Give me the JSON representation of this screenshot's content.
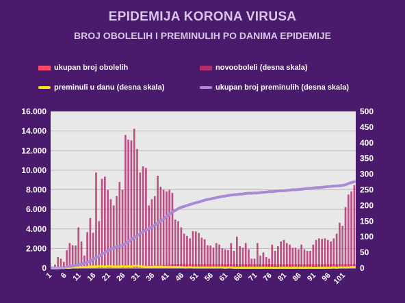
{
  "chart_data": {
    "type": "bar",
    "title": "EPIDEMIJA KORONA VIRUSA",
    "subtitle": "BROJ OBOLELIH I PREMINULIH PO DANIMA EPIDEMIJE",
    "xlabel": "",
    "ylabel": "",
    "ylim": [
      0,
      16000
    ],
    "y2lim": [
      0,
      500
    ],
    "grid": true,
    "legend_position": "top",
    "background": "#4a1a6c",
    "plot_background": "#e8e8e8",
    "y_ticks": [
      "0",
      "2.000",
      "4.000",
      "6.000",
      "8.000",
      "10.000",
      "12.000",
      "14.000",
      "16.000"
    ],
    "y2_ticks": [
      "0",
      "50",
      "100",
      "150",
      "200",
      "250",
      "300",
      "350",
      "400",
      "450",
      "500"
    ],
    "x_ticks": [
      "1",
      "6",
      "11",
      "16",
      "21",
      "26",
      "31",
      "36",
      "41",
      "46",
      "51",
      "56",
      "61",
      "66",
      "71",
      "76",
      "81",
      "86",
      "91",
      "96",
      "101"
    ],
    "x": [
      1,
      2,
      3,
      4,
      5,
      6,
      7,
      8,
      9,
      10,
      11,
      12,
      13,
      14,
      15,
      16,
      17,
      18,
      19,
      20,
      21,
      22,
      23,
      24,
      25,
      26,
      27,
      28,
      29,
      30,
      31,
      32,
      33,
      34,
      35,
      36,
      37,
      38,
      39,
      40,
      41,
      42,
      43,
      44,
      45,
      46,
      47,
      48,
      49,
      50,
      51,
      52,
      53,
      54,
      55,
      56,
      57,
      58,
      59,
      60,
      61,
      62,
      63,
      64,
      65,
      66,
      67,
      68,
      69,
      70,
      71,
      72,
      73,
      74,
      75,
      76,
      77,
      78,
      79,
      80,
      81,
      82,
      83,
      84,
      85,
      86,
      87,
      88,
      89,
      90,
      91,
      92,
      93,
      94,
      95,
      96,
      97,
      98,
      99,
      100,
      101,
      102,
      103,
      104
    ],
    "series": [
      {
        "name": "ukupan broj obolelih",
        "axis": "left",
        "type": "bar",
        "color": "#ff4a68",
        "values": [
          1,
          1,
          1,
          2,
          2,
          3,
          5,
          8,
          11,
          17,
          23,
          27,
          33,
          39,
          45,
          55,
          60,
          72,
          82,
          95,
          110,
          124,
          138,
          151,
          165,
          180,
          195,
          210,
          222,
          235,
          245,
          257,
          263,
          272,
          285,
          305,
          320,
          330,
          348,
          362,
          378,
          392,
          400,
          400,
          400,
          400,
          400,
          400,
          400,
          400,
          400,
          400,
          400,
          400,
          400,
          400,
          400,
          400,
          400,
          400,
          400,
          400,
          400,
          400,
          400,
          400,
          400,
          400,
          400,
          400,
          400,
          400,
          400,
          400,
          400,
          400,
          400,
          400,
          400,
          400,
          400,
          400,
          400,
          400,
          400,
          400,
          400,
          400,
          400,
          400,
          400,
          400,
          400,
          400,
          400,
          400,
          400,
          400,
          400,
          400,
          400,
          400,
          400,
          400
        ]
      },
      {
        "name": "novooboleli (desna skala)",
        "axis": "right",
        "type": "bar",
        "color": "#b32d6e",
        "values": [
          5,
          11,
          35,
          30,
          20,
          57,
          80,
          73,
          72,
          130,
          85,
          40,
          115,
          160,
          113,
          305,
          150,
          285,
          292,
          250,
          220,
          200,
          230,
          275,
          250,
          425,
          410,
          408,
          445,
          380,
          305,
          325,
          320,
          200,
          220,
          230,
          295,
          260,
          250,
          245,
          250,
          240,
          155,
          150,
          130,
          110,
          103,
          95,
          118,
          117,
          112,
          97,
          92,
          73,
          72,
          65,
          80,
          75,
          63,
          60,
          58,
          80,
          55,
          100,
          70,
          65,
          80,
          60,
          30,
          30,
          80,
          40,
          50,
          35,
          30,
          75,
          55,
          70,
          85,
          90,
          80,
          75,
          65,
          65,
          60,
          75,
          60,
          55,
          55,
          75,
          90,
          95,
          93,
          95,
          90,
          85,
          95,
          110,
          145,
          135,
          195,
          235,
          245,
          265
        ]
      },
      {
        "name": "preminuli u danu (desna skala)",
        "axis": "right",
        "type": "line",
        "color": "#ffe119",
        "values": [
          0,
          0,
          0,
          0,
          1,
          1,
          1,
          2,
          2,
          2,
          3,
          3,
          4,
          5,
          5,
          5,
          6,
          6,
          5,
          6,
          6,
          5,
          5,
          5,
          6,
          5,
          6,
          5,
          7,
          7,
          6,
          5,
          4,
          4,
          4,
          5,
          4,
          5,
          4,
          4,
          4,
          3,
          3,
          3,
          3,
          2,
          2,
          3,
          2,
          2,
          2,
          2,
          2,
          2,
          2,
          2,
          2,
          2,
          2,
          1,
          2,
          2,
          1,
          1,
          1,
          1,
          1,
          1,
          1,
          1,
          1,
          1,
          1,
          1,
          1,
          1,
          1,
          1,
          1,
          1,
          1,
          1,
          1,
          1,
          1,
          1,
          1,
          1,
          1,
          1,
          1,
          1,
          1,
          1,
          1,
          1,
          2,
          1,
          2,
          2,
          2,
          2,
          3,
          3
        ]
      },
      {
        "name": "ukupan broj preminulih (desna skala)",
        "axis": "right",
        "type": "line",
        "color": "#a98ad6",
        "values": [
          0,
          0,
          0,
          1,
          1,
          3,
          5,
          7,
          9,
          11,
          13,
          16,
          19,
          23,
          28,
          33,
          38,
          44,
          50,
          56,
          61,
          64,
          68,
          70,
          73,
          78,
          85,
          91,
          97,
          103,
          110,
          116,
          122,
          126,
          131,
          137,
          145,
          150,
          157,
          165,
          172,
          179,
          184,
          190,
          194,
          197,
          200,
          203,
          206,
          209,
          211,
          214,
          217,
          219,
          221,
          223,
          225,
          227,
          229,
          230,
          232,
          233,
          234,
          235,
          236,
          237,
          238,
          239,
          239,
          240,
          240,
          241,
          242,
          243,
          244,
          244,
          245,
          246,
          247,
          247,
          248,
          249,
          250,
          250,
          251,
          252,
          253,
          254,
          255,
          256,
          257,
          257,
          258,
          259,
          260,
          261,
          262,
          262,
          263,
          264,
          266,
          270,
          273,
          276
        ]
      }
    ]
  },
  "legend": [
    {
      "label": "ukupan broj obolelih",
      "color": "#ff4a68",
      "kind": "rect"
    },
    {
      "label": "novooboleli (desna skala)",
      "color": "#b32d6e",
      "kind": "rect"
    },
    {
      "label": "preminuli u danu (desna skala)",
      "color": "#ffe119",
      "kind": "line"
    },
    {
      "label": "ukupan broj preminulih (desna skala)",
      "color": "#a98ad6",
      "kind": "line"
    }
  ]
}
